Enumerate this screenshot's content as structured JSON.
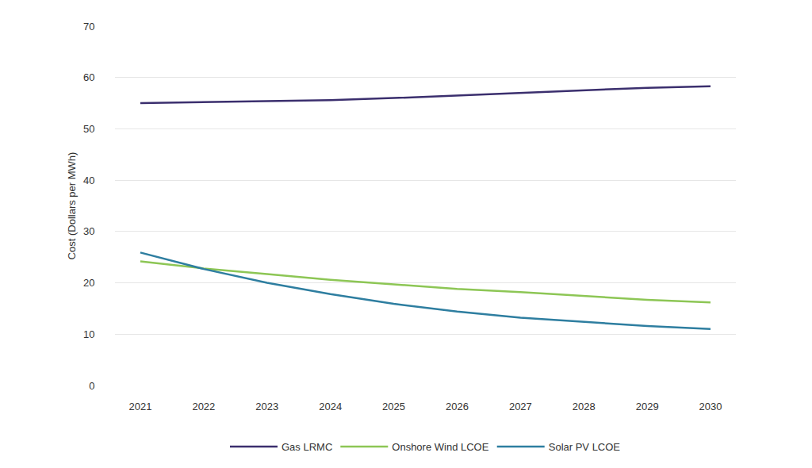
{
  "chart_data": {
    "type": "line",
    "y_label": "Cost (Dollars per MWh)",
    "categories": [
      "2021",
      "2022",
      "2023",
      "2024",
      "2025",
      "2026",
      "2027",
      "2028",
      "2029",
      "2030"
    ],
    "series": [
      {
        "name": "Gas LRMC",
        "color": "#3b2f6e",
        "values": [
          55.0,
          55.2,
          55.4,
          55.6,
          56.0,
          56.5,
          57.0,
          57.6,
          58.0,
          58.3
        ]
      },
      {
        "name": "Onshore Wind LCOE",
        "color": "#8dc655",
        "values": [
          24.2,
          22.8,
          21.7,
          20.6,
          19.7,
          18.8,
          18.2,
          17.5,
          16.7,
          16.2
        ]
      },
      {
        "name": "Solar PV LCOE",
        "color": "#2e7ea0",
        "values": [
          25.9,
          22.7,
          20.0,
          17.8,
          15.9,
          14.4,
          13.2,
          12.4,
          11.6,
          11.0
        ]
      }
    ],
    "ylim": [
      0,
      70
    ],
    "yticks": [
      0,
      10,
      20,
      30,
      40,
      50,
      60,
      70
    ],
    "grid": true,
    "legend": "bottom"
  }
}
